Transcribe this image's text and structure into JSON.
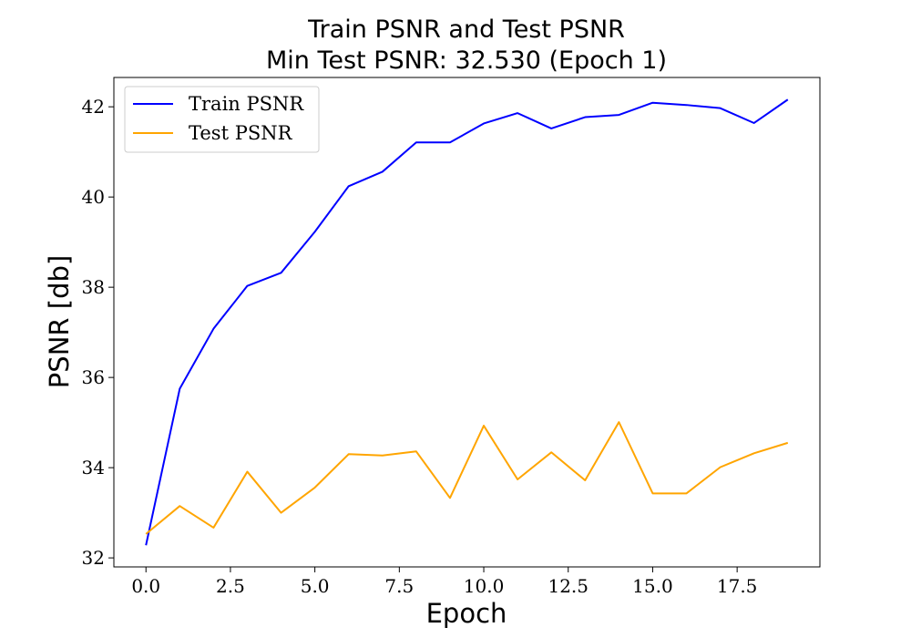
{
  "chart_data": {
    "type": "line",
    "title": "Train PSNR and Test PSNR",
    "subtitle": "Min Test PSNR: 32.530 (Epoch 1)",
    "xlabel": "Epoch",
    "ylabel": "PSNR [db]",
    "xlim": [
      -0.95,
      19.95
    ],
    "ylim": [
      31.8,
      42.65
    ],
    "xticks": [
      0,
      2.5,
      5,
      7.5,
      10,
      12.5,
      15,
      17.5
    ],
    "xtick_labels": [
      "0.0",
      "2.5",
      "5.0",
      "7.5",
      "10.0",
      "12.5",
      "15.0",
      "17.5"
    ],
    "yticks": [
      32,
      34,
      36,
      38,
      40,
      42
    ],
    "ytick_labels": [
      "32",
      "34",
      "36",
      "38",
      "40",
      "42"
    ],
    "grid": false,
    "legend_position": "upper-left",
    "x": [
      0,
      1,
      2,
      3,
      4,
      5,
      6,
      7,
      8,
      9,
      10,
      11,
      12,
      13,
      14,
      15,
      16,
      17,
      18,
      19
    ],
    "series": [
      {
        "name": "Train PSNR",
        "color": "#0000ff",
        "values": [
          32.28,
          35.75,
          37.08,
          38.03,
          38.32,
          39.23,
          40.24,
          40.56,
          41.21,
          41.21,
          41.63,
          41.86,
          41.52,
          41.77,
          41.82,
          42.09,
          42.04,
          41.97,
          41.64,
          42.16
        ]
      },
      {
        "name": "Test PSNR",
        "color": "#ffa500",
        "values": [
          32.53,
          33.15,
          32.67,
          33.91,
          33.0,
          33.56,
          34.3,
          34.27,
          34.36,
          33.33,
          34.93,
          33.74,
          34.34,
          33.72,
          35.01,
          33.43,
          33.43,
          34.01,
          34.32,
          34.55
        ]
      }
    ]
  }
}
